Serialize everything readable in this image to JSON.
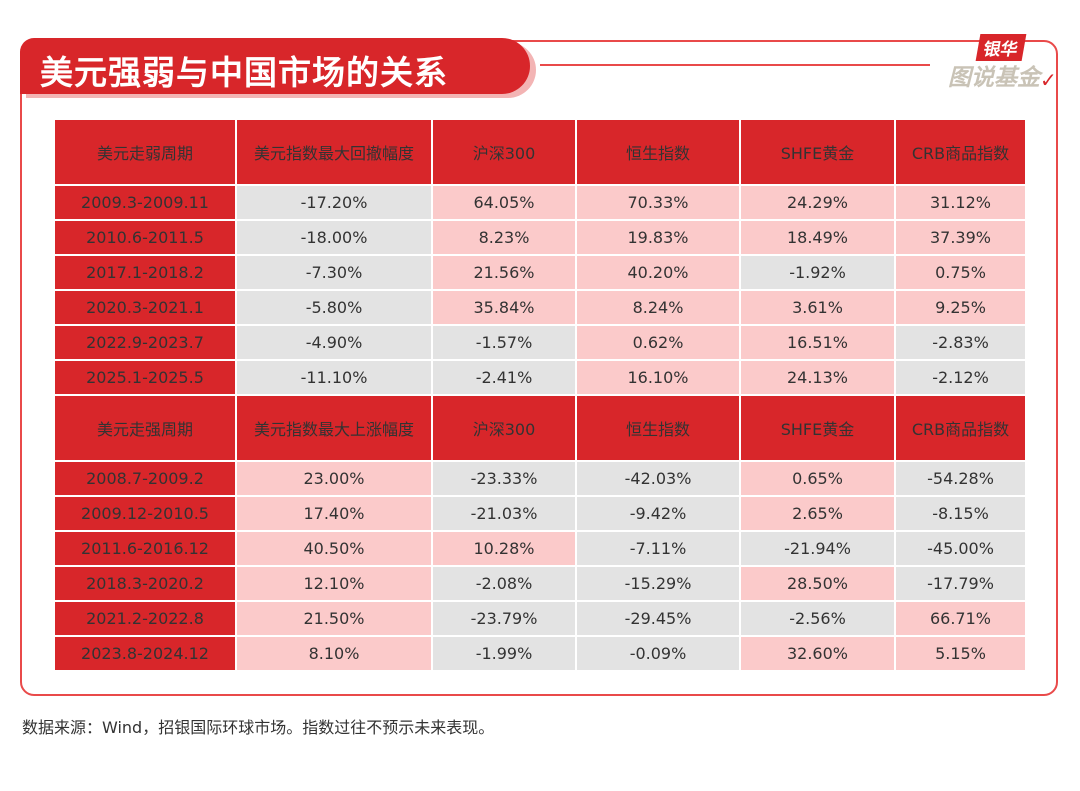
{
  "title": "美元强弱与中国市场的关系",
  "logo": {
    "top": "银华",
    "bottom": "图说基金",
    "check": "✓"
  },
  "colors": {
    "accent": "#d8262a",
    "positive_cell": "#fbcaca",
    "negative_cell": "#e3e3e3"
  },
  "weak_table": {
    "headers": [
      "美元走弱周期",
      "美元指数最大回撤幅度",
      "沪深300",
      "恒生指数",
      "SHFE黄金",
      "CRB商品指数"
    ],
    "rows": [
      [
        "2009.3-2009.11",
        "-17.20%",
        "64.05%",
        "70.33%",
        "24.29%",
        "31.12%"
      ],
      [
        "2010.6-2011.5",
        "-18.00%",
        "8.23%",
        "19.83%",
        "18.49%",
        "37.39%"
      ],
      [
        "2017.1-2018.2",
        "-7.30%",
        "21.56%",
        "40.20%",
        "-1.92%",
        "0.75%"
      ],
      [
        "2020.3-2021.1",
        "-5.80%",
        "35.84%",
        "8.24%",
        "3.61%",
        "9.25%"
      ],
      [
        "2022.9-2023.7",
        "-4.90%",
        "-1.57%",
        "0.62%",
        "16.51%",
        "-2.83%"
      ],
      [
        "2025.1-2025.5",
        "-11.10%",
        "-2.41%",
        "16.10%",
        "24.13%",
        "-2.12%"
      ]
    ]
  },
  "strong_table": {
    "headers": [
      "美元走强周期",
      "美元指数最大上涨幅度",
      "沪深300",
      "恒生指数",
      "SHFE黄金",
      "CRB商品指数"
    ],
    "rows": [
      [
        "2008.7-2009.2",
        "23.00%",
        "-23.33%",
        "-42.03%",
        "0.65%",
        "-54.28%"
      ],
      [
        "2009.12-2010.5",
        "17.40%",
        "-21.03%",
        "-9.42%",
        "2.65%",
        "-8.15%"
      ],
      [
        "2011.6-2016.12",
        "40.50%",
        "10.28%",
        "-7.11%",
        "-21.94%",
        "-45.00%"
      ],
      [
        "2018.3-2020.2",
        "12.10%",
        "-2.08%",
        "-15.29%",
        "28.50%",
        "-17.79%"
      ],
      [
        "2021.2-2022.8",
        "21.50%",
        "-23.79%",
        "-29.45%",
        "-2.56%",
        "66.71%"
      ],
      [
        "2023.8-2024.12",
        "8.10%",
        "-1.99%",
        "-0.09%",
        "32.60%",
        "5.15%"
      ]
    ]
  },
  "footnote": "数据来源：Wind，招银国际环球市场。指数过往不预示未来表现。"
}
